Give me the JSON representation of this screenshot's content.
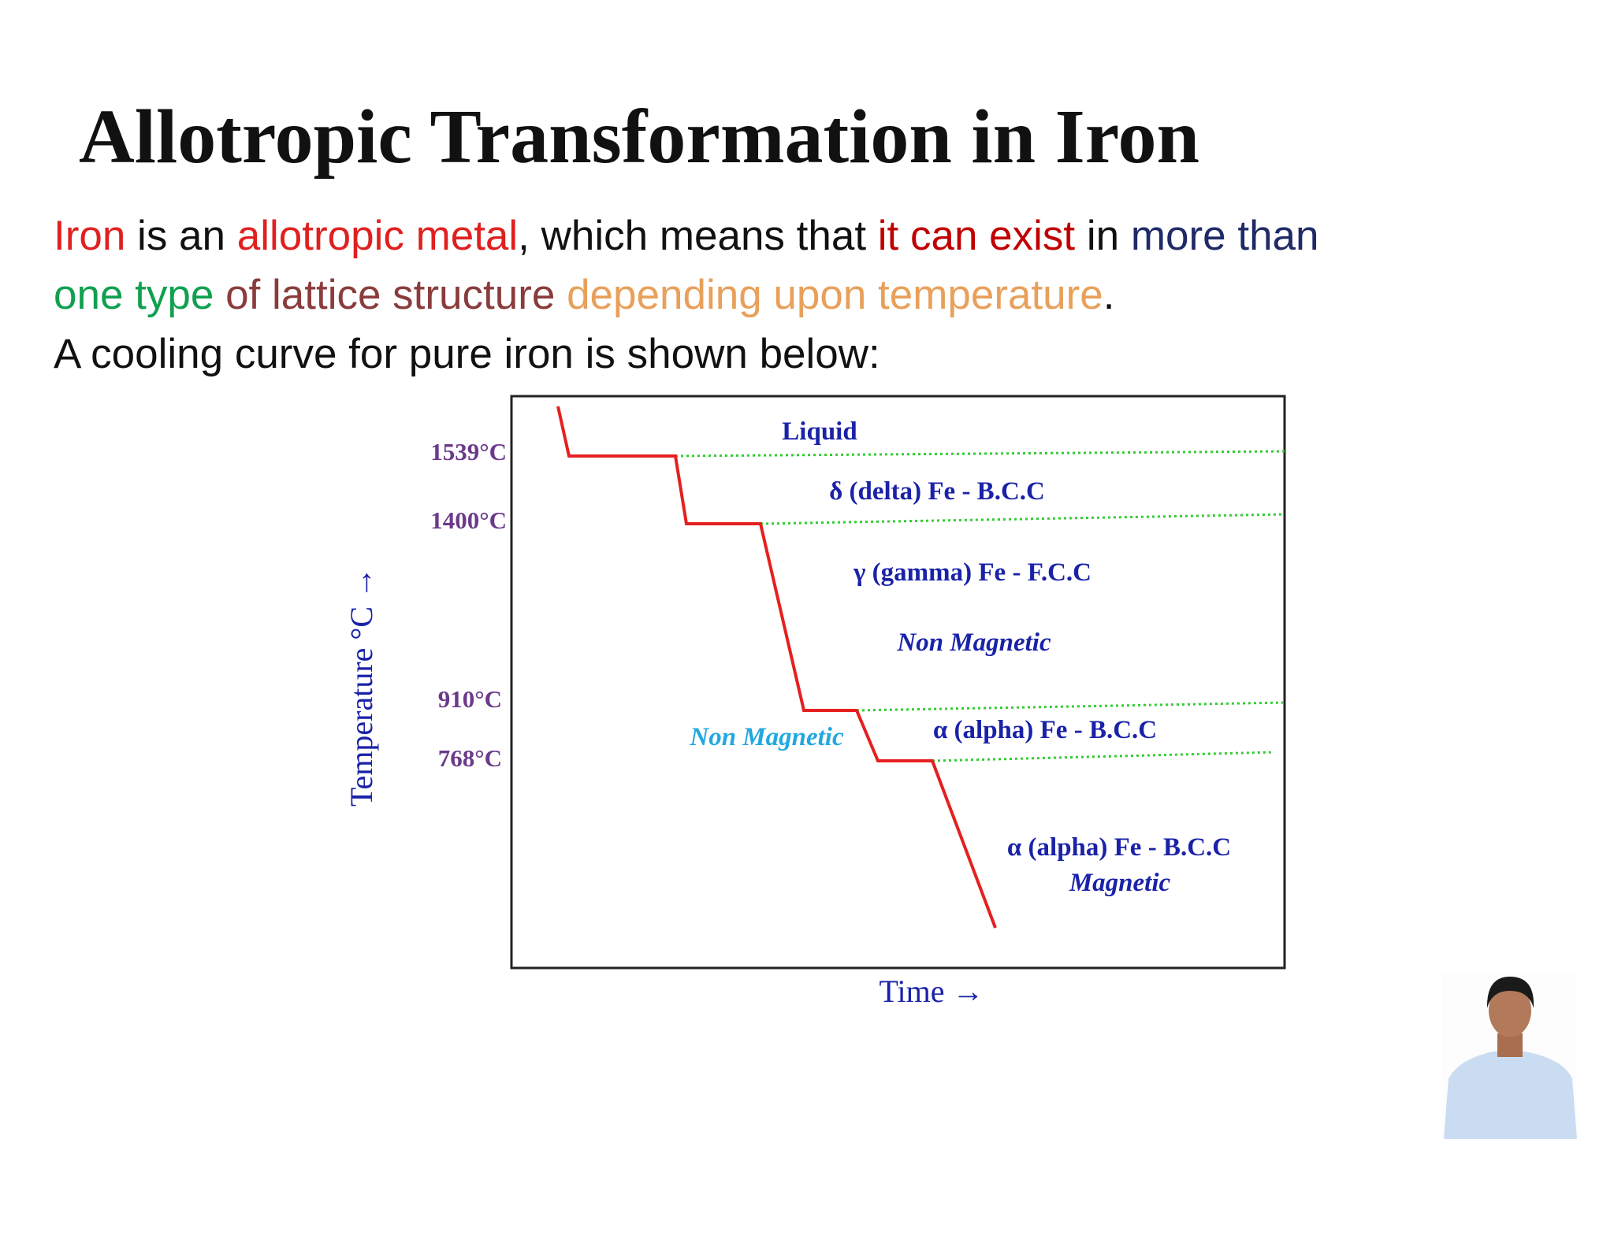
{
  "header": {
    "title": "Allotropic Transformation in Iron"
  },
  "intro": {
    "lines": [
      [
        {
          "text": "Iron",
          "color": "#e02020"
        },
        {
          "text": " is an ",
          "color": "#111111"
        },
        {
          "text": "allotropic metal",
          "color": "#e02020"
        },
        {
          "text": ", which means that ",
          "color": "#111111"
        },
        {
          "text": "it can exist",
          "color": "#c00000"
        },
        {
          "text": " in ",
          "color": "#111111"
        },
        {
          "text": "more than",
          "color": "#1f2a66"
        }
      ],
      [
        {
          "text": "one type",
          "color": "#10a050"
        },
        {
          "text": " of lattice structure",
          "color": "#8a3c3c"
        },
        {
          "text": " depending upon temperature",
          "color": "#e8a05a"
        },
        {
          "text": ".",
          "color": "#111111"
        }
      ],
      [
        {
          "text": "A cooling curve for pure iron is shown below:",
          "color": "#111111"
        }
      ]
    ]
  },
  "diagram": {
    "temperatures": [
      "1539°C",
      "1400°C",
      "910°C",
      "768°C"
    ],
    "phases": {
      "liquid": "Liquid",
      "delta": "δ (delta) Fe - B.C.C",
      "gamma": "γ (gamma) Fe - F.C.C",
      "gamma_note": "Non Magnetic",
      "alpha_upper_note": "Non Magnetic",
      "alpha_upper": "α (alpha) Fe - B.C.C",
      "alpha_lower": "α (alpha) Fe - B.C.C",
      "alpha_lower_note": "Magnetic"
    },
    "x_label": "Time →",
    "y_label": "Temperature °C →"
  }
}
